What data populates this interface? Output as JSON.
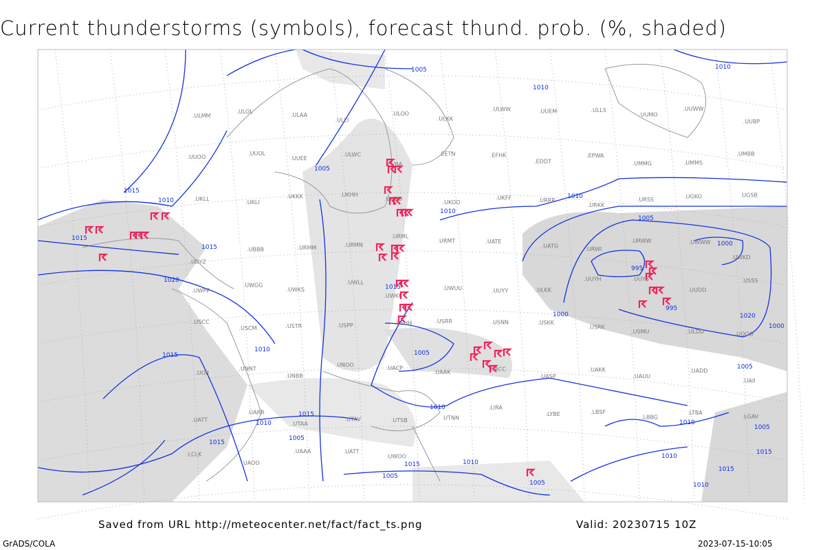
{
  "title": "Current thunderstorms (symbols), forecast thund. prob. (%, shaded)",
  "footer": {
    "source": "Saved from URL http://meteocenter.net/fact/fact_ts.png",
    "valid": "Valid: 20230715 10Z",
    "software": "GrADS/COLA",
    "timestamp": "2023-07-15-10:05"
  },
  "colors": {
    "isobar": "#1030e0",
    "thunderstorm_symbol": "#f0245a",
    "shading": "#d8d8d8",
    "coastline": "#999999"
  },
  "isobar_labels": [
    "1005",
    "1010",
    "1010",
    "1005",
    "1010",
    "1015",
    "1010",
    "1015",
    "1010",
    "1005",
    "1000",
    "995",
    "995",
    "1000",
    "1000",
    "1005",
    "1020",
    "1015",
    "1020",
    "1005",
    "1010",
    "1015",
    "1010",
    "1015",
    "1015",
    "1010",
    "1005",
    "1015",
    "1010",
    "1010",
    "1005",
    "1010",
    "1015",
    "1015",
    "1015",
    "1005",
    "1010",
    "1005"
  ],
  "stations": [
    "ULMM",
    "ULOL",
    "ULAA",
    "ULLI",
    "ULOO",
    "ULKK",
    "ULWW",
    "UUEM",
    "ULLS",
    "UUMO",
    "UUWW",
    "UUBP",
    "UUOO",
    "UUOL",
    "UUEE",
    "ULWC",
    "EVRA",
    "EETN",
    "EFHK",
    "EDDT",
    "EPWA",
    "UMMG",
    "UMMS",
    "UMBB",
    "UKLL",
    "UKLI",
    "UKKK",
    "UKHH",
    "UKDD",
    "UKOO",
    "UKFF",
    "URRR",
    "URKK",
    "URSS",
    "UGKO",
    "UGSB",
    "UDYZ",
    "UBBB",
    "URMM",
    "URMN",
    "URML",
    "URMT",
    "UATE",
    "UATG",
    "URWI",
    "URWW",
    "UWWW",
    "UWKD",
    "UWPP",
    "UWGG",
    "UWKS",
    "UWLL",
    "UWKE",
    "UWUU",
    "UUYY",
    "ULKK",
    "UUYH",
    "UUYS",
    "UUDD",
    "USSS",
    "USCC",
    "USCM",
    "USTR",
    "USPP",
    "USHH",
    "USRR",
    "USNN",
    "USKK",
    "USRK",
    "USMU",
    "ULDD",
    "UOOO",
    "UOII",
    "UNNT",
    "UNBB",
    "UNOO",
    "UACP",
    "UAAK",
    "UACC",
    "UASP",
    "UAKK",
    "UAUU",
    "UADD",
    "UAII",
    "UATT",
    "UARR",
    "UTAA",
    "UTAV",
    "UTSB",
    "UTNN",
    "LIRA",
    "LYBE",
    "LBSF",
    "LBBG",
    "LTBA",
    "LGAV",
    "LCLK",
    "UAOO",
    "UAAA",
    "UATT",
    "UWOO"
  ],
  "symbol_count": 40
}
